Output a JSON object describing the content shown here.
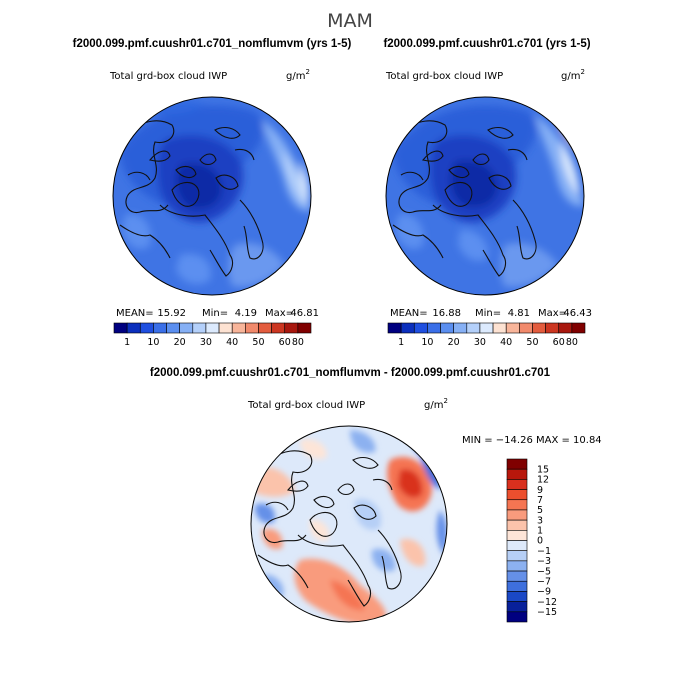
{
  "figure_title": "MAM",
  "panels": [
    {
      "title": "f2000.099.pmf.cuushr01.c701_nomflumvm (yrs 1-5)",
      "field": "Total grd-box cloud IWP",
      "units": "g/m",
      "units_exp": "2",
      "stats": {
        "mean_label": "MEAN=",
        "mean": "15.92",
        "min_label": "Min=",
        "min": "4.19",
        "max_label": "Max=",
        "max": "46.81"
      }
    },
    {
      "title": "f2000.099.pmf.cuushr01.c701 (yrs 1-5)",
      "field": "Total grd-box cloud IWP",
      "units": "g/m",
      "units_exp": "2",
      "stats": {
        "mean_label": "MEAN=",
        "mean": "16.88",
        "min_label": "Min=",
        "min": "4.81",
        "max_label": "Max=",
        "max": "46.43"
      }
    },
    {
      "title": "f2000.099.pmf.cuushr01.c701_nomflumvm - f2000.099.pmf.cuushr01.c701",
      "field": "Total grd-box cloud IWP",
      "units": "g/m",
      "units_exp": "2",
      "range_text": "MIN = −14.26  MAX =  10.84"
    }
  ],
  "colorbar_abs": {
    "colors": [
      "#000080",
      "#0b2fbd",
      "#1f4fe0",
      "#3a6fe8",
      "#5b8ff0",
      "#86b0f5",
      "#b4d0fa",
      "#dceafd",
      "#fde2d2",
      "#f8b59a",
      "#f18a6c",
      "#e35c3e",
      "#cc3621",
      "#a8170e",
      "#800000"
    ],
    "labels": [
      "1",
      "10",
      "20",
      "30",
      "40",
      "50",
      "60",
      "80"
    ]
  },
  "colorbar_diff": {
    "colors": [
      "#800000",
      "#b8170c",
      "#d9301e",
      "#ec4f2e",
      "#f57552",
      "#f99b7d",
      "#fbc3ab",
      "#fde5d8",
      "#dde9fa",
      "#b6cff6",
      "#8cb1f0",
      "#6590e8",
      "#3e6fdd",
      "#1a48c6",
      "#08209a",
      "#000080"
    ],
    "labels": [
      "15",
      "12",
      "9",
      "7",
      "5",
      "3",
      "1",
      "0",
      "−1",
      "−3",
      "−5",
      "−7",
      "−9",
      "−12",
      "−15"
    ]
  },
  "chart_data": [
    {
      "type": "heatmap",
      "projection": "polar-stereographic (north pole)",
      "title": "f2000.099.pmf.cuushr01.c701_nomflumvm (yrs 1-5)",
      "variable": "Total grd-box cloud IWP",
      "units": "g/m^2",
      "mean": 15.92,
      "min": 4.19,
      "max": 46.81,
      "contour_levels": [
        1,
        5,
        10,
        15,
        20,
        25,
        30,
        35,
        40,
        45,
        50,
        55,
        60,
        70,
        80
      ]
    },
    {
      "type": "heatmap",
      "projection": "polar-stereographic (north pole)",
      "title": "f2000.099.pmf.cuushr01.c701 (yrs 1-5)",
      "variable": "Total grd-box cloud IWP",
      "units": "g/m^2",
      "mean": 16.88,
      "min": 4.81,
      "max": 46.43,
      "contour_levels": [
        1,
        5,
        10,
        15,
        20,
        25,
        30,
        35,
        40,
        45,
        50,
        55,
        60,
        70,
        80
      ]
    },
    {
      "type": "heatmap",
      "projection": "polar-stereographic (north pole)",
      "title": "f2000.099.pmf.cuushr01.c701_nomflumvm - f2000.099.pmf.cuushr01.c701",
      "variable": "Total grd-box cloud IWP (difference)",
      "units": "g/m^2",
      "min": -14.26,
      "max": 10.84,
      "contour_levels": [
        -15,
        -12,
        -9,
        -7,
        -5,
        -3,
        -1,
        0,
        1,
        3,
        5,
        7,
        9,
        12,
        15
      ]
    }
  ]
}
